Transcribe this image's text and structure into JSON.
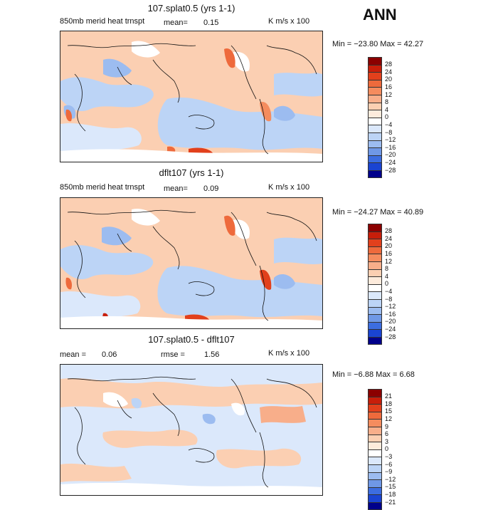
{
  "season": "ANN",
  "panels": [
    {
      "title": "107.splat0.5 (yrs 1-1)",
      "subtitle_left": "850mb merid heat trnspt",
      "mean_label": "mean=",
      "mean_value": "0.15",
      "units": "K m/s x 100",
      "minmax": "Min = −23.80 Max =  42.27"
    },
    {
      "title": "dflt107 (yrs 1-1)",
      "subtitle_left": "850mb merid heat trnspt",
      "mean_label": "mean=",
      "mean_value": "0.09",
      "units": "K m/s x 100",
      "minmax": "Min = −24.27 Max =  40.89"
    },
    {
      "title": "107.splat0.5 - dflt107",
      "mean_label": "mean =",
      "mean_value": "0.06",
      "rmse_label": "rmse =",
      "rmse_value": "1.56",
      "units": "K m/s x 100",
      "minmax": "Min =  −6.88 Max =   6.68"
    }
  ],
  "colorbar_abs": {
    "labels": [
      "28",
      "24",
      "20",
      "16",
      "12",
      "8",
      "4",
      "0",
      "−4",
      "−8",
      "−12",
      "−16",
      "−20",
      "−24",
      "−28"
    ],
    "colors": [
      "#8b0000",
      "#c81e0a",
      "#e2401c",
      "#ee6a3c",
      "#f58c5e",
      "#f8ae8a",
      "#fbcfb2",
      "#fdebdc",
      "#ffffff",
      "#dbe8fb",
      "#bcd4f6",
      "#9cbcf0",
      "#6f98e6",
      "#3c6de0",
      "#1a44d2",
      "#00008b"
    ]
  },
  "colorbar_diff": {
    "labels": [
      "21",
      "18",
      "15",
      "12",
      "9",
      "6",
      "3",
      "0",
      "−3",
      "−6",
      "−9",
      "−12",
      "−15",
      "−18",
      "−21"
    ],
    "colors": [
      "#8b0000",
      "#c81e0a",
      "#e2401c",
      "#ee6a3c",
      "#f58c5e",
      "#f8ae8a",
      "#fbcfb2",
      "#fdebdc",
      "#ffffff",
      "#dbe8fb",
      "#bcd4f6",
      "#9cbcf0",
      "#6f98e6",
      "#3c6de0",
      "#1a44d2",
      "#00008b"
    ]
  }
}
